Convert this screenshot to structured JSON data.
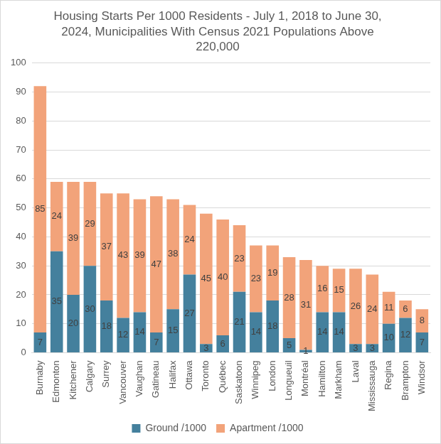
{
  "chart_data": {
    "type": "bar",
    "title": "Housing Starts Per 1000 Residents - July 1, 2018 to June 30, 2024, Municipalities With Census 2021 Populations Above 220,000",
    "categories": [
      "Burnaby",
      "Edmonton",
      "Kitchener",
      "Calgary",
      "Surrey",
      "Vancouver",
      "Vaughan",
      "Gatineau",
      "Halifax",
      "Ottawa",
      "Toronto",
      "Québec",
      "Saskatoon",
      "Winnipeg",
      "London",
      "Longueuil",
      "Montréal",
      "Hamilton",
      "Markham",
      "Laval",
      "Mississauga",
      "Regina",
      "Brampton",
      "Windsor"
    ],
    "series": [
      {
        "name": "Ground /1000",
        "color": "#44809d",
        "values": [
          7,
          35,
          20,
          30,
          18,
          12,
          14,
          7,
          15,
          27,
          3,
          6,
          21,
          14,
          18,
          5,
          1,
          14,
          14,
          3,
          3,
          10,
          12,
          7
        ]
      },
      {
        "name": "Apartment /1000",
        "color": "#f2a37a",
        "values": [
          85,
          24,
          39,
          29,
          37,
          43,
          39,
          47,
          38,
          24,
          45,
          40,
          23,
          23,
          19,
          28,
          31,
          16,
          15,
          26,
          24,
          11,
          6,
          8
        ]
      }
    ],
    "ylim": [
      0,
      100
    ],
    "yticks": [
      0,
      10,
      20,
      30,
      40,
      50,
      60,
      70,
      80,
      90,
      100
    ],
    "stacked": true,
    "data_labels": true,
    "grid": true,
    "legend": "bottom"
  }
}
